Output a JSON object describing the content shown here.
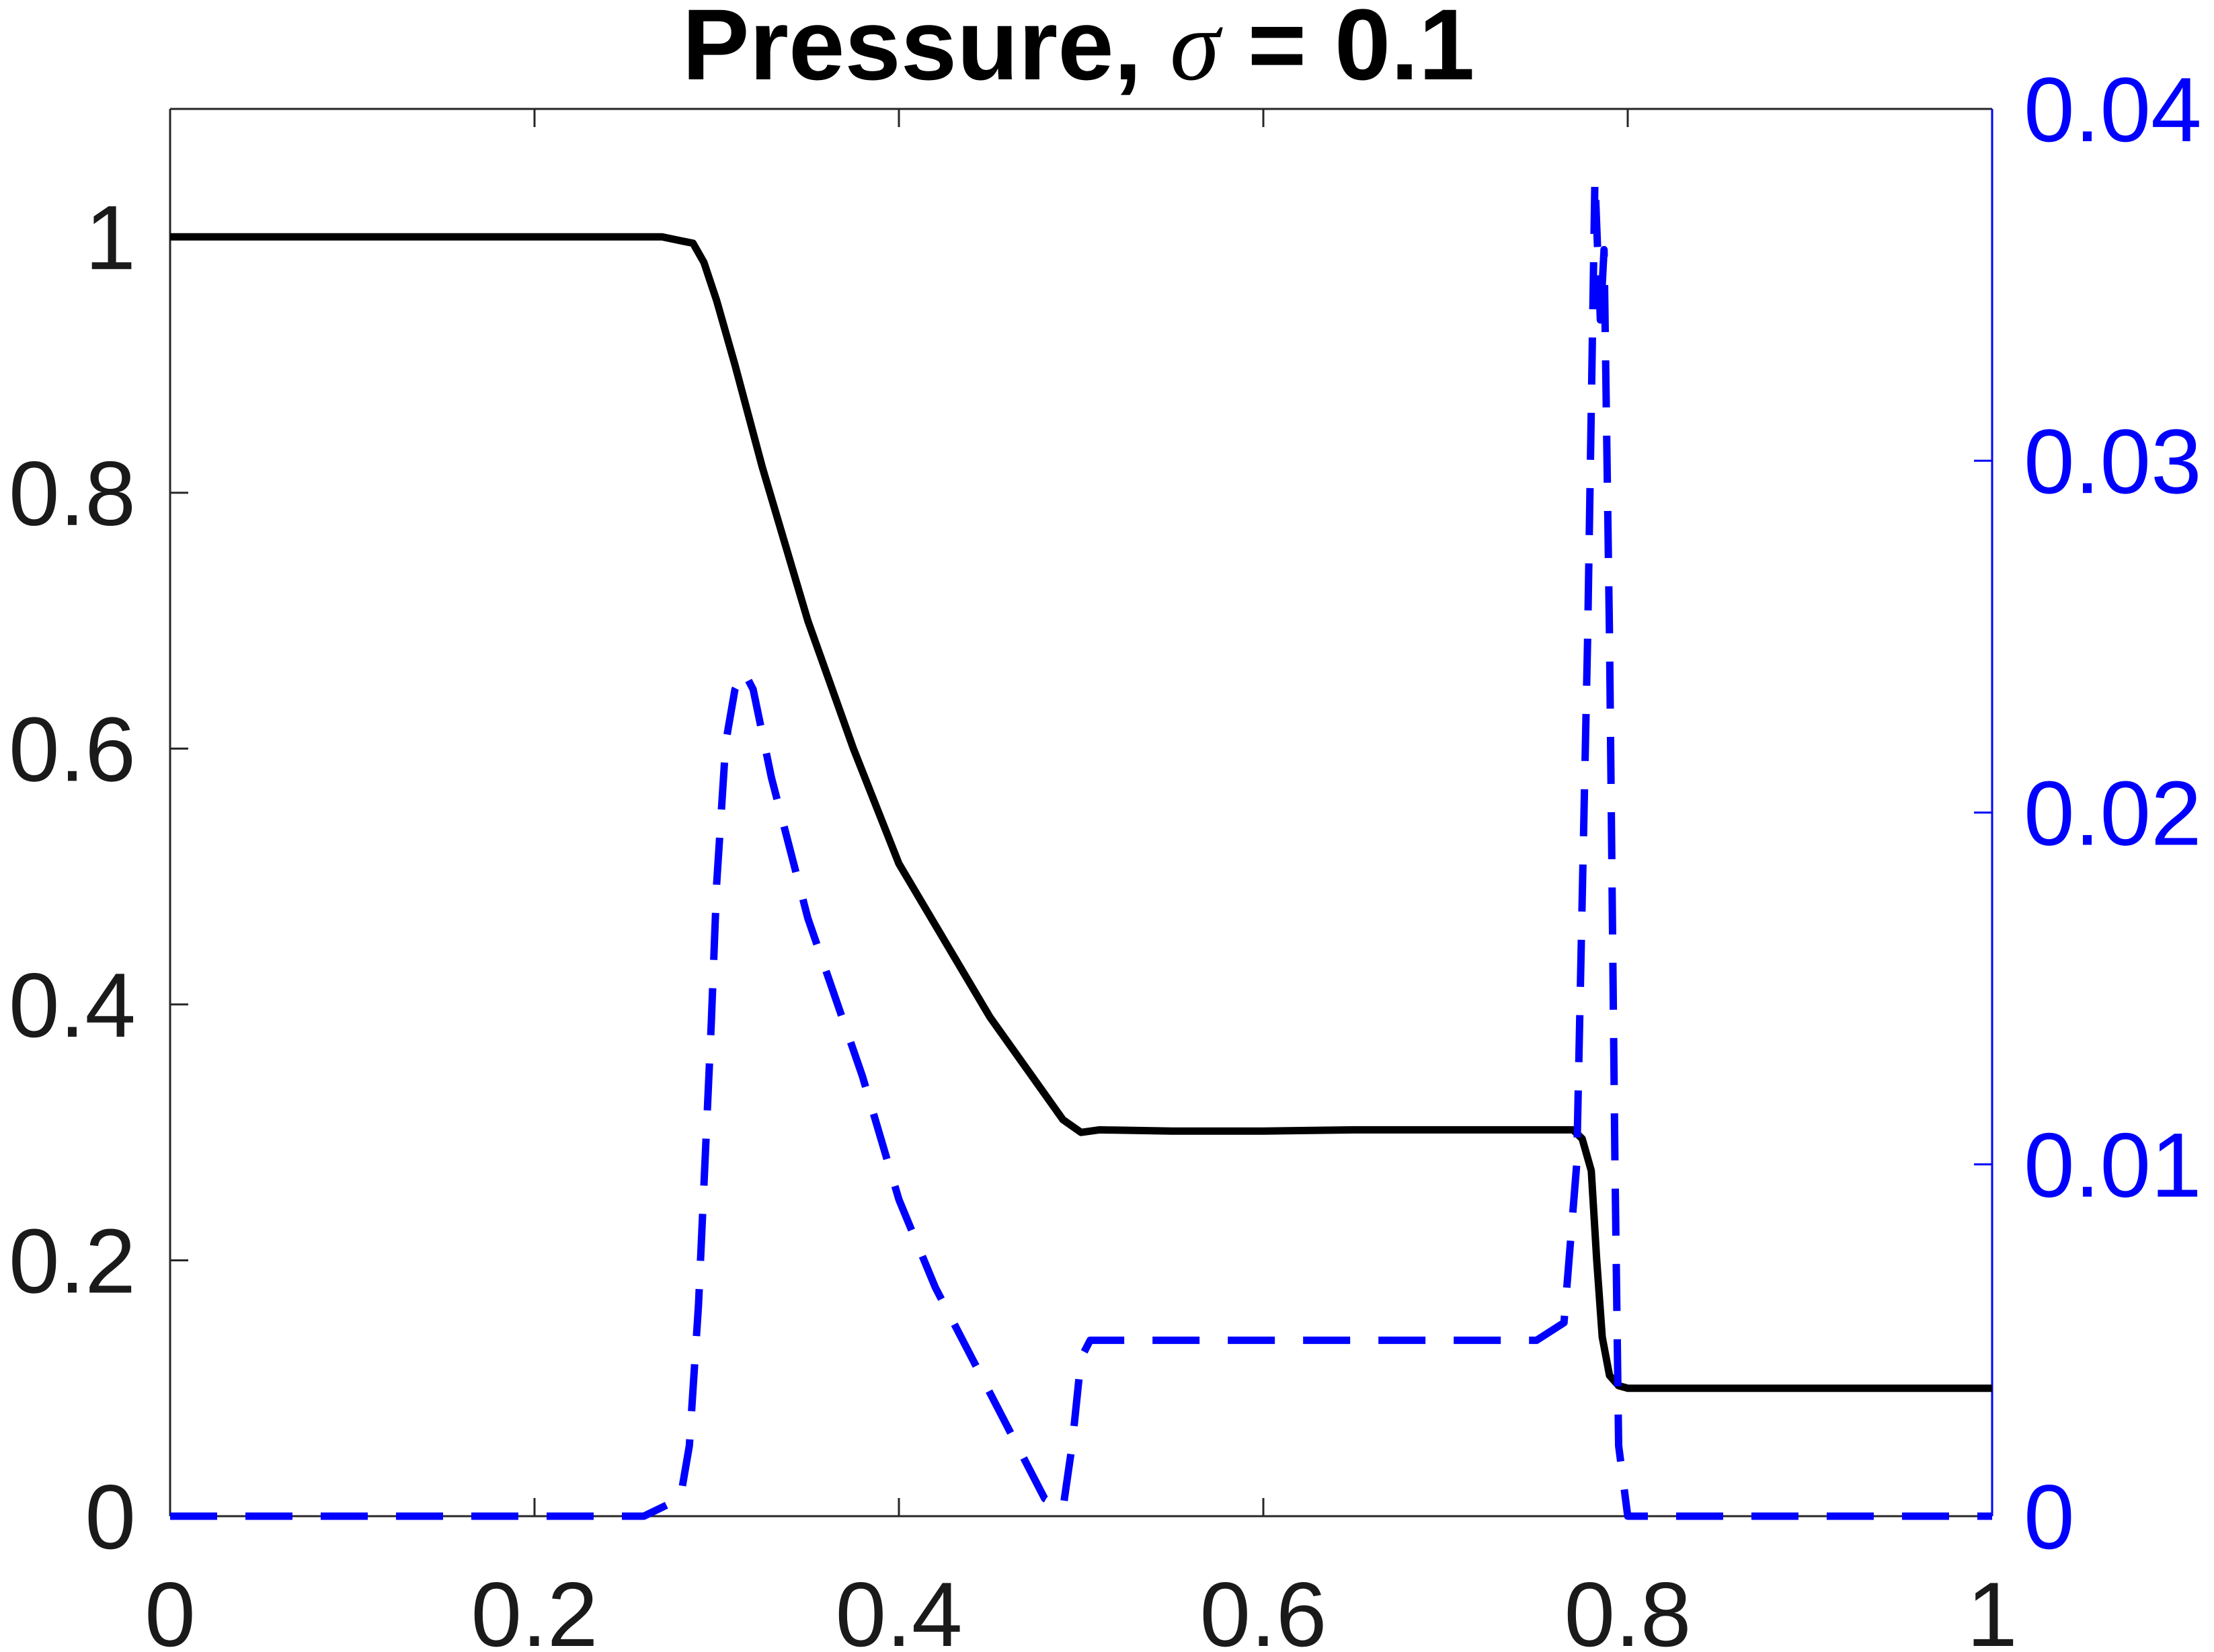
{
  "title_prefix": "Pressure, ",
  "title_symbol": "σ",
  "title_suffix": " = 0.1",
  "colors": {
    "primary": "#000000",
    "secondary": "#0000ff",
    "axis": "#262626"
  },
  "chart_data": {
    "type": "line",
    "title": "Pressure, σ = 0.1",
    "xlim": [
      0,
      1
    ],
    "ylim_left": [
      0,
      1.1
    ],
    "ylim_right": [
      0,
      0.04
    ],
    "grid": false,
    "legend": "none",
    "x_ticks": [
      "0",
      "0.2",
      "0.4",
      "0.6",
      "0.8",
      "1"
    ],
    "y_left_ticks": [
      "0",
      "0.2",
      "0.4",
      "0.6",
      "0.8",
      "1"
    ],
    "y_right_ticks": [
      "0",
      "0.01",
      "0.02",
      "0.03",
      "0.04"
    ],
    "series": [
      {
        "axis": "left",
        "style": "solid",
        "color": "#000000",
        "x": [
          0,
          0.1,
          0.2,
          0.27,
          0.287,
          0.293,
          0.3,
          0.31,
          0.325,
          0.35,
          0.375,
          0.4,
          0.425,
          0.45,
          0.47,
          0.49,
          0.5,
          0.51,
          0.55,
          0.6,
          0.65,
          0.7,
          0.75,
          0.77,
          0.775,
          0.78,
          0.783,
          0.786,
          0.79,
          0.795,
          0.8,
          0.85,
          0.9,
          0.95,
          1.0
        ],
        "y": [
          1.0,
          1.0,
          1.0,
          1.0,
          0.995,
          0.98,
          0.95,
          0.9,
          0.82,
          0.7,
          0.6,
          0.51,
          0.45,
          0.39,
          0.35,
          0.31,
          0.3,
          0.302,
          0.301,
          0.301,
          0.302,
          0.302,
          0.302,
          0.302,
          0.295,
          0.27,
          0.2,
          0.14,
          0.11,
          0.102,
          0.1,
          0.1,
          0.1,
          0.1,
          0.1
        ]
      },
      {
        "axis": "right",
        "style": "dashed",
        "color": "#0000ff",
        "x": [
          0,
          0.1,
          0.2,
          0.26,
          0.28,
          0.285,
          0.29,
          0.297,
          0.3,
          0.305,
          0.31,
          0.315,
          0.32,
          0.33,
          0.35,
          0.38,
          0.4,
          0.42,
          0.44,
          0.46,
          0.47,
          0.48,
          0.49,
          0.495,
          0.5,
          0.505,
          0.51,
          0.55,
          0.6,
          0.65,
          0.7,
          0.75,
          0.765,
          0.772,
          0.778,
          0.782,
          0.785,
          0.787,
          0.79,
          0.793,
          0.795,
          0.8,
          0.81,
          0.85,
          0.9,
          0.95,
          1.0
        ],
        "y": [
          0,
          0,
          0,
          0,
          0.0005,
          0.002,
          0.006,
          0.014,
          0.018,
          0.022,
          0.0235,
          0.024,
          0.0235,
          0.021,
          0.017,
          0.0125,
          0.009,
          0.0065,
          0.0045,
          0.0025,
          0.0015,
          0.0005,
          0.0002,
          0.002,
          0.0045,
          0.005,
          0.005,
          0.005,
          0.005,
          0.005,
          0.005,
          0.005,
          0.0055,
          0.01,
          0.025,
          0.038,
          0.034,
          0.036,
          0.025,
          0.01,
          0.002,
          0,
          0,
          0,
          0,
          0,
          0
        ]
      }
    ]
  }
}
